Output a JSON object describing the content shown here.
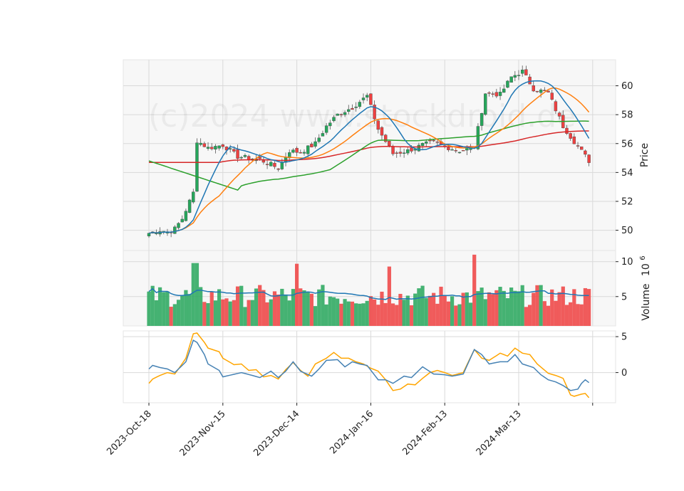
{
  "chart_data": {
    "type": "candlestick",
    "watermark": "(c)2024 www.stockdroid.de",
    "x_tick_labels": [
      "2023-Oct-18",
      "2023-Nov-15",
      "2023-Dec-14",
      "2024-Jan-16",
      "2024-Feb-13",
      "2024-Mar-13"
    ],
    "x_tick_index": [
      0,
      20,
      40,
      60,
      80,
      100
    ],
    "price_panel": {
      "ylabel": "Price",
      "ylim": [
        48.6,
        61.8
      ],
      "yticks": [
        50,
        52,
        54,
        56,
        58,
        60
      ],
      "up_color": "#26a65b",
      "down_color": "#ef4040",
      "ohlc_anchor_close": [
        [
          0,
          49.8
        ],
        [
          3,
          50.0
        ],
        [
          5,
          49.9
        ],
        [
          7,
          50.1
        ],
        [
          9,
          50.8
        ],
        [
          12,
          52.6
        ],
        [
          13,
          56.2
        ],
        [
          16,
          55.7
        ],
        [
          20,
          55.9
        ],
        [
          24,
          55.1
        ],
        [
          27,
          55.0
        ],
        [
          30,
          54.9
        ],
        [
          35,
          54.3
        ],
        [
          38,
          55.5
        ],
        [
          41,
          55.4
        ],
        [
          45,
          56.0
        ],
        [
          48,
          57.2
        ],
        [
          51,
          58.0
        ],
        [
          55,
          58.5
        ],
        [
          59,
          59.3
        ],
        [
          62,
          57.0
        ],
        [
          66,
          55.3
        ],
        [
          70,
          55.5
        ],
        [
          74,
          55.9
        ],
        [
          77,
          56.1
        ],
        [
          80,
          55.8
        ],
        [
          84,
          55.5
        ],
        [
          88,
          55.8
        ],
        [
          91,
          59.5
        ],
        [
          95,
          59.4
        ],
        [
          98,
          60.6
        ],
        [
          101,
          61.0
        ],
        [
          104,
          59.8
        ],
        [
          108,
          59.5
        ],
        [
          112,
          57.2
        ],
        [
          116,
          55.8
        ],
        [
          119,
          54.8
        ]
      ],
      "ma_short_color": "#1f77b4",
      "ma_mid_color": "#ff7f0e",
      "ma_long_color": "#2ca02c",
      "ma_longest_color": "#d62728"
    },
    "volume_panel": {
      "ylabel": "Volume  10^6",
      "ylabel_main": "Volume",
      "ylabel_exp": "10",
      "ylabel_exp_power": "6",
      "ylim": [
        0.8,
        11.6
      ],
      "yticks": [
        5,
        10
      ],
      "ytick_labels": [
        "5",
        "10"
      ],
      "ma_color": "#1f77b4"
    },
    "indicator_panel": {
      "ylim": [
        -4.2,
        5.8
      ],
      "yticks": [
        0,
        5
      ],
      "ytick_labels": [
        "0",
        "5"
      ],
      "line1_color": "#4682b4",
      "line2_color": "#ffa500",
      "line1_anchor": [
        [
          0,
          0.5
        ],
        [
          1,
          1.0
        ],
        [
          3,
          0.7
        ],
        [
          5,
          0.5
        ],
        [
          7,
          0.0
        ],
        [
          8,
          0.5
        ],
        [
          10,
          1.5
        ],
        [
          12,
          4.5
        ],
        [
          13,
          4.2
        ],
        [
          15,
          2.5
        ],
        [
          16,
          1.2
        ],
        [
          19,
          0.3
        ],
        [
          20,
          -0.6
        ],
        [
          25,
          0.0
        ],
        [
          28,
          -0.4
        ],
        [
          30,
          -0.7
        ],
        [
          33,
          0.2
        ],
        [
          35,
          -0.7
        ],
        [
          37,
          0.2
        ],
        [
          39,
          1.5
        ],
        [
          41,
          0.2
        ],
        [
          44,
          -0.5
        ],
        [
          46,
          0.5
        ],
        [
          48,
          1.7
        ],
        [
          51,
          1.8
        ],
        [
          53,
          0.8
        ],
        [
          55,
          1.5
        ],
        [
          57,
          1.2
        ],
        [
          59,
          1.0
        ],
        [
          62,
          -1.0
        ],
        [
          64,
          -1.0
        ],
        [
          66,
          -1.5
        ],
        [
          69,
          -0.5
        ],
        [
          71,
          -0.7
        ],
        [
          74,
          0.8
        ],
        [
          77,
          -0.2
        ],
        [
          80,
          -0.3
        ],
        [
          82,
          -0.5
        ],
        [
          85,
          -0.2
        ],
        [
          88,
          3.2
        ],
        [
          90,
          2.5
        ],
        [
          92,
          1.2
        ],
        [
          95,
          1.5
        ],
        [
          97,
          1.5
        ],
        [
          99,
          2.5
        ],
        [
          101,
          1.2
        ],
        [
          104,
          0.7
        ],
        [
          106,
          -0.3
        ],
        [
          108,
          -1.0
        ],
        [
          110,
          -1.3
        ],
        [
          112,
          -1.8
        ],
        [
          114,
          -2.5
        ],
        [
          116,
          -2.3
        ],
        [
          117,
          -1.5
        ],
        [
          118,
          -1.0
        ],
        [
          119,
          -1.4
        ]
      ],
      "line2_anchor": [
        [
          0,
          -1.5
        ],
        [
          1,
          -0.9
        ],
        [
          3,
          -0.4
        ],
        [
          5,
          0.0
        ],
        [
          7,
          -0.2
        ],
        [
          8,
          0.5
        ],
        [
          10,
          2.0
        ],
        [
          12,
          5.4
        ],
        [
          13,
          5.5
        ],
        [
          15,
          4.2
        ],
        [
          16,
          3.4
        ],
        [
          19,
          2.9
        ],
        [
          20,
          2.0
        ],
        [
          23,
          1.1
        ],
        [
          25,
          1.2
        ],
        [
          27,
          0.3
        ],
        [
          29,
          0.4
        ],
        [
          31,
          -0.6
        ],
        [
          33,
          -0.4
        ],
        [
          35,
          -0.9
        ],
        [
          37,
          0.4
        ],
        [
          39,
          1.4
        ],
        [
          41,
          0.3
        ],
        [
          43,
          -0.5
        ],
        [
          45,
          1.2
        ],
        [
          48,
          2.0
        ],
        [
          50,
          2.8
        ],
        [
          52,
          2.0
        ],
        [
          54,
          2.0
        ],
        [
          56,
          1.5
        ],
        [
          58,
          1.2
        ],
        [
          60,
          0.6
        ],
        [
          62,
          0.2
        ],
        [
          64,
          -1.0
        ],
        [
          66,
          -2.5
        ],
        [
          68,
          -2.3
        ],
        [
          70,
          -1.6
        ],
        [
          72,
          -1.7
        ],
        [
          74,
          -0.8
        ],
        [
          76,
          0.0
        ],
        [
          78,
          0.3
        ],
        [
          80,
          0.0
        ],
        [
          82,
          -0.4
        ],
        [
          85,
          0.0
        ],
        [
          88,
          3.2
        ],
        [
          90,
          2.0
        ],
        [
          92,
          1.7
        ],
        [
          95,
          2.7
        ],
        [
          97,
          2.3
        ],
        [
          99,
          3.4
        ],
        [
          101,
          2.7
        ],
        [
          103,
          2.5
        ],
        [
          105,
          1.2
        ],
        [
          108,
          -0.1
        ],
        [
          110,
          -0.4
        ],
        [
          112,
          -0.8
        ],
        [
          114,
          -3.1
        ],
        [
          115,
          -3.3
        ],
        [
          117,
          -3.0
        ],
        [
          118,
          -2.9
        ],
        [
          119,
          -3.5
        ]
      ]
    }
  }
}
